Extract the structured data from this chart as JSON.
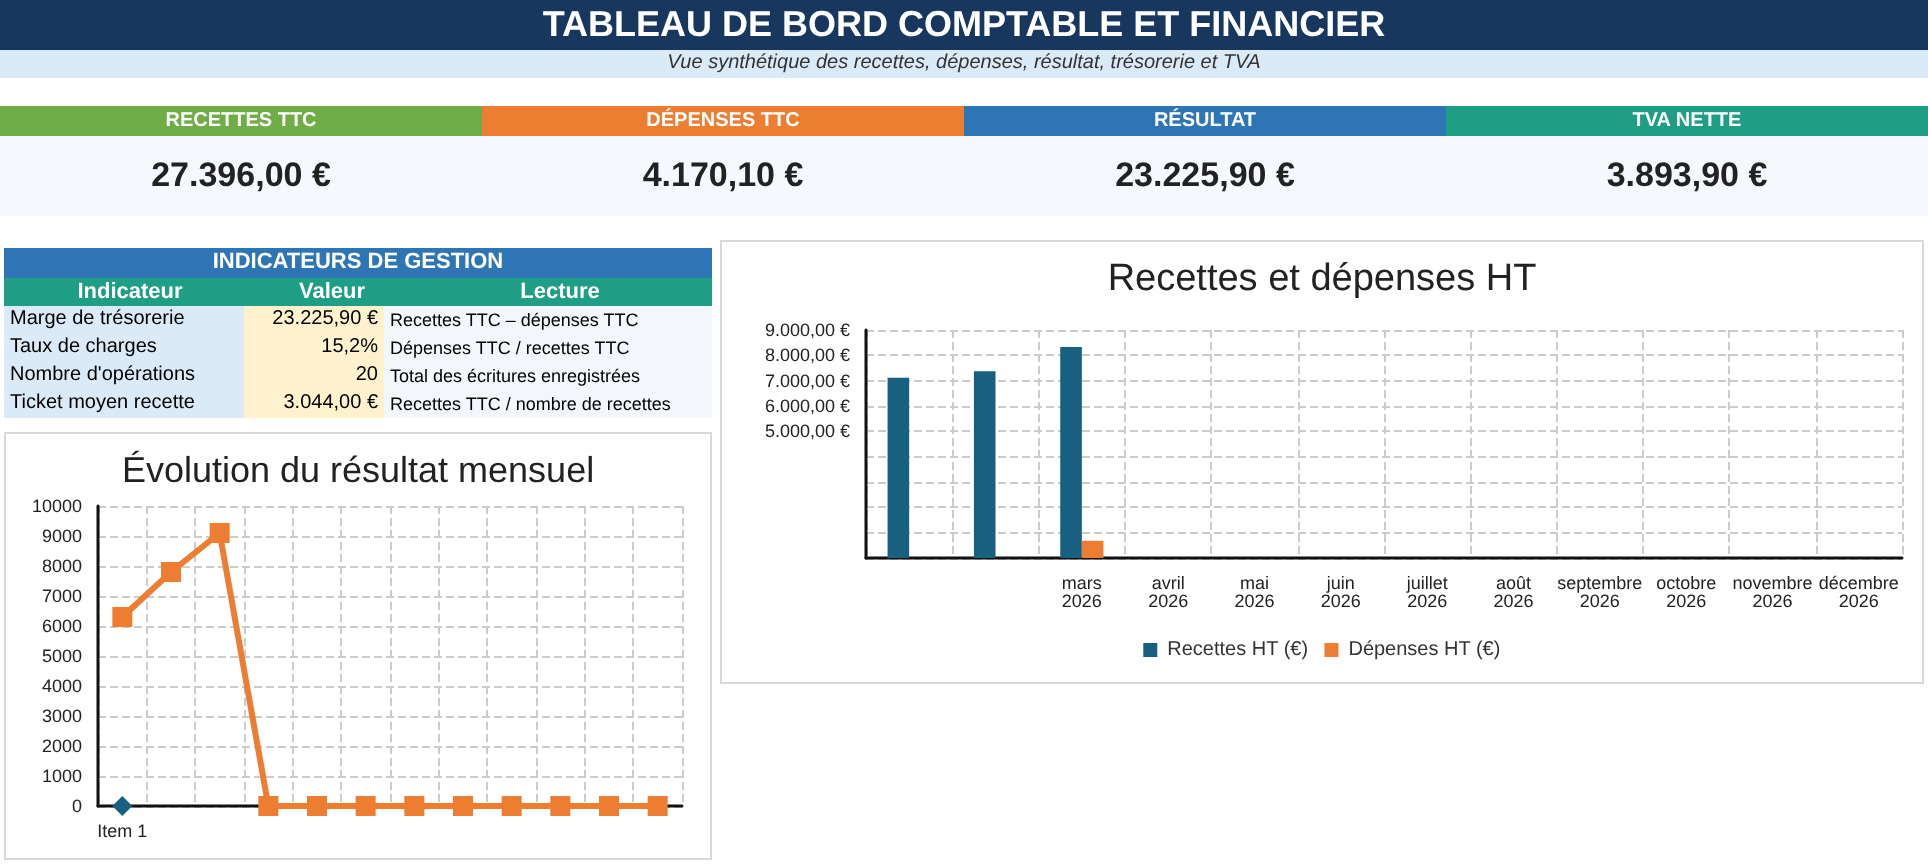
{
  "chart_data": [
    {
      "type": "other",
      "title": "TABLEAU DE BORD COMPTABLE ET FINANCIER",
      "subtitle": "Vue synthétique des recettes, dépenses, résultat, trésorerie et TVA",
      "categories": [
        "RECETTES TTC",
        "DÉPENSES TTC",
        "RÉSULTAT",
        "TVA NETTE"
      ],
      "value_labels": [
        "27.396,00 €",
        "4.170,10 €",
        "23.225,90 €",
        "3.893,90 €"
      ],
      "values": [
        27396.0,
        4170.1,
        23225.9,
        3893.9
      ],
      "colors": [
        "#70ad47",
        "#ed7d31",
        "#2e75b6",
        "#1f9e86"
      ]
    },
    {
      "type": "other",
      "title": "INDICATEURS DE GESTION",
      "categories": [
        "Marge de trésorerie",
        "Taux de charges",
        "Nombre d'opérations",
        "Ticket moyen recette"
      ],
      "value_labels": [
        "23.225,90 €",
        "15,2%",
        "20",
        "3.044,00 €"
      ],
      "values": [
        23225.9,
        15.2,
        20,
        3044.0
      ],
      "annotations": [
        "Indicateur",
        "Valeur",
        "Lecture",
        "Recettes TTC – dépenses TTC",
        "Dépenses TTC / recettes TTC",
        "Total des écritures enregistrées",
        "Recettes TTC / nombre de recettes"
      ]
    },
    {
      "type": "bar",
      "title": "Recettes et dépenses HT",
      "categories": [
        null,
        null,
        "mars 2026",
        "avril 2026",
        "mai 2026",
        "juin 2026",
        "juillet 2026",
        "août 2026",
        "septembre 2026",
        "octobre 2026",
        "novembre 2026",
        "décembre 2026"
      ],
      "series": [
        {
          "name": "Recettes HT (€)",
          "color": "#17607f",
          "values": [
            7120,
            7370,
            8330,
            0,
            0,
            0,
            0,
            0,
            0,
            0,
            0,
            0
          ]
        },
        {
          "name": "Dépenses HT (€)",
          "color": "#ed7d31",
          "values": [
            null,
            null,
            680,
            0,
            0,
            0,
            0,
            0,
            0,
            0,
            0,
            0
          ]
        }
      ],
      "ylim": [
        0,
        9000
      ],
      "yticks": [
        {
          "value": 0,
          "label": null
        },
        {
          "value": 1000,
          "label": null
        },
        {
          "value": 2000,
          "label": null
        },
        {
          "value": 3000,
          "label": null
        },
        {
          "value": 4000,
          "label": null
        },
        {
          "value": 5000,
          "label": "5.000,00 €"
        },
        {
          "value": 6000,
          "label": "6.000,00 €"
        },
        {
          "value": 7000,
          "label": "7.000,00 €"
        },
        {
          "value": 8000,
          "label": "8.000,00 €"
        },
        {
          "value": 9000,
          "label": "9.000,00 €"
        }
      ],
      "grid": true,
      "legend": "bottom"
    },
    {
      "type": "line",
      "title": "Évolution du résultat mensuel",
      "categories": [
        "Item 1",
        null,
        null,
        null,
        null,
        null,
        null,
        null,
        null,
        null,
        null,
        null
      ],
      "series": [
        {
          "color": "#ed7d31",
          "marker": "square",
          "values": [
            6300,
            7800,
            9100,
            0,
            0,
            0,
            0,
            0,
            0,
            0,
            0,
            0
          ]
        },
        {
          "color": "#17607f",
          "marker": "diamond",
          "values": [
            0,
            null,
            null,
            null,
            null,
            null,
            null,
            null,
            null,
            null,
            null,
            null
          ]
        }
      ],
      "ylim": [
        0,
        10000
      ],
      "yticks": [
        0,
        1000,
        2000,
        3000,
        4000,
        5000,
        6000,
        7000,
        8000,
        9000,
        10000
      ],
      "grid": true,
      "line_style": "solid"
    }
  ]
}
